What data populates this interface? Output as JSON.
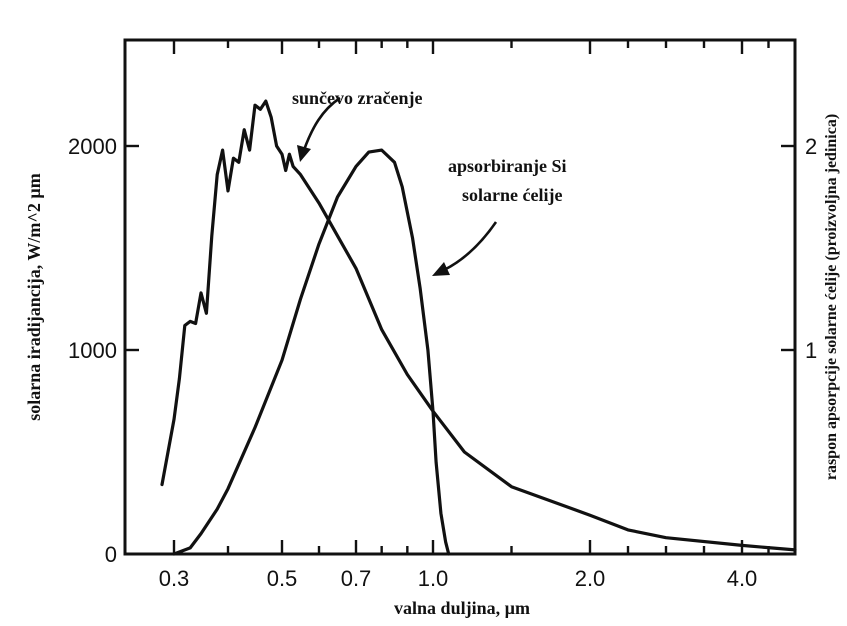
{
  "chart_data": {
    "type": "line",
    "xlabel": "valna duljina, µm",
    "ylabel_left": "solarna iradijancija, W/m^2 µm",
    "ylabel_right": "raspon apsorpcije solarne ćelije (proizvoljna jedinica)",
    "x_ticks": [
      {
        "label": "0.3",
        "value": 0.3
      },
      {
        "label": "0.5",
        "value": 0.5
      },
      {
        "label": "0.7",
        "value": 0.7
      },
      {
        "label": "1.0",
        "value": 1.0
      },
      {
        "label": "2.0",
        "value": 2.0
      },
      {
        "label": "4.0",
        "value": 4.0
      }
    ],
    "y_left_ticks": [
      {
        "label": "0",
        "value": 0
      },
      {
        "label": "1000",
        "value": 1000
      },
      {
        "label": "2000",
        "value": 2000
      }
    ],
    "y_right_ticks": [
      {
        "label": "1",
        "value": 1
      },
      {
        "label": "2",
        "value": 2
      }
    ],
    "ylim": [
      0,
      2500
    ],
    "grid": false,
    "series": [
      {
        "name": "sunčevo zračenje",
        "x": [
          0.29,
          0.3,
          0.31,
          0.32,
          0.33,
          0.34,
          0.35,
          0.36,
          0.37,
          0.38,
          0.39,
          0.4,
          0.41,
          0.42,
          0.43,
          0.44,
          0.45,
          0.46,
          0.47,
          0.48,
          0.49,
          0.5,
          0.51,
          0.52,
          0.53,
          0.55,
          0.6,
          0.65,
          0.7,
          0.8,
          0.9,
          1.0,
          1.2,
          1.5,
          2.0,
          2.5,
          3.0,
          4.0,
          5.0
        ],
        "y": [
          340,
          660,
          860,
          1120,
          1140,
          1130,
          1280,
          1180,
          1560,
          1860,
          1980,
          1780,
          1940,
          1920,
          2080,
          1980,
          2200,
          2180,
          2220,
          2140,
          2000,
          1960,
          1880,
          1960,
          1900,
          1860,
          1720,
          1560,
          1400,
          1100,
          880,
          700,
          500,
          330,
          190,
          118,
          80,
          42,
          20
        ]
      },
      {
        "name": "apsorbiranje Si solarne ćelije",
        "x": [
          0.3,
          0.33,
          0.35,
          0.38,
          0.4,
          0.45,
          0.5,
          0.55,
          0.6,
          0.65,
          0.7,
          0.75,
          0.8,
          0.85,
          0.88,
          0.92,
          0.95,
          0.98,
          1.0,
          1.02,
          1.05,
          1.08,
          1.1
        ],
        "y": [
          0,
          0.03,
          0.1,
          0.22,
          0.32,
          0.62,
          0.95,
          1.25,
          1.52,
          1.75,
          1.9,
          1.97,
          1.98,
          1.92,
          1.8,
          1.55,
          1.3,
          1.0,
          0.7,
          0.45,
          0.2,
          0.06,
          0
        ]
      }
    ],
    "annotations": [
      {
        "text": "sunčevo zračenje"
      },
      {
        "text": "apsorbiranje Si"
      },
      {
        "text": "solarne ćelije"
      }
    ]
  }
}
